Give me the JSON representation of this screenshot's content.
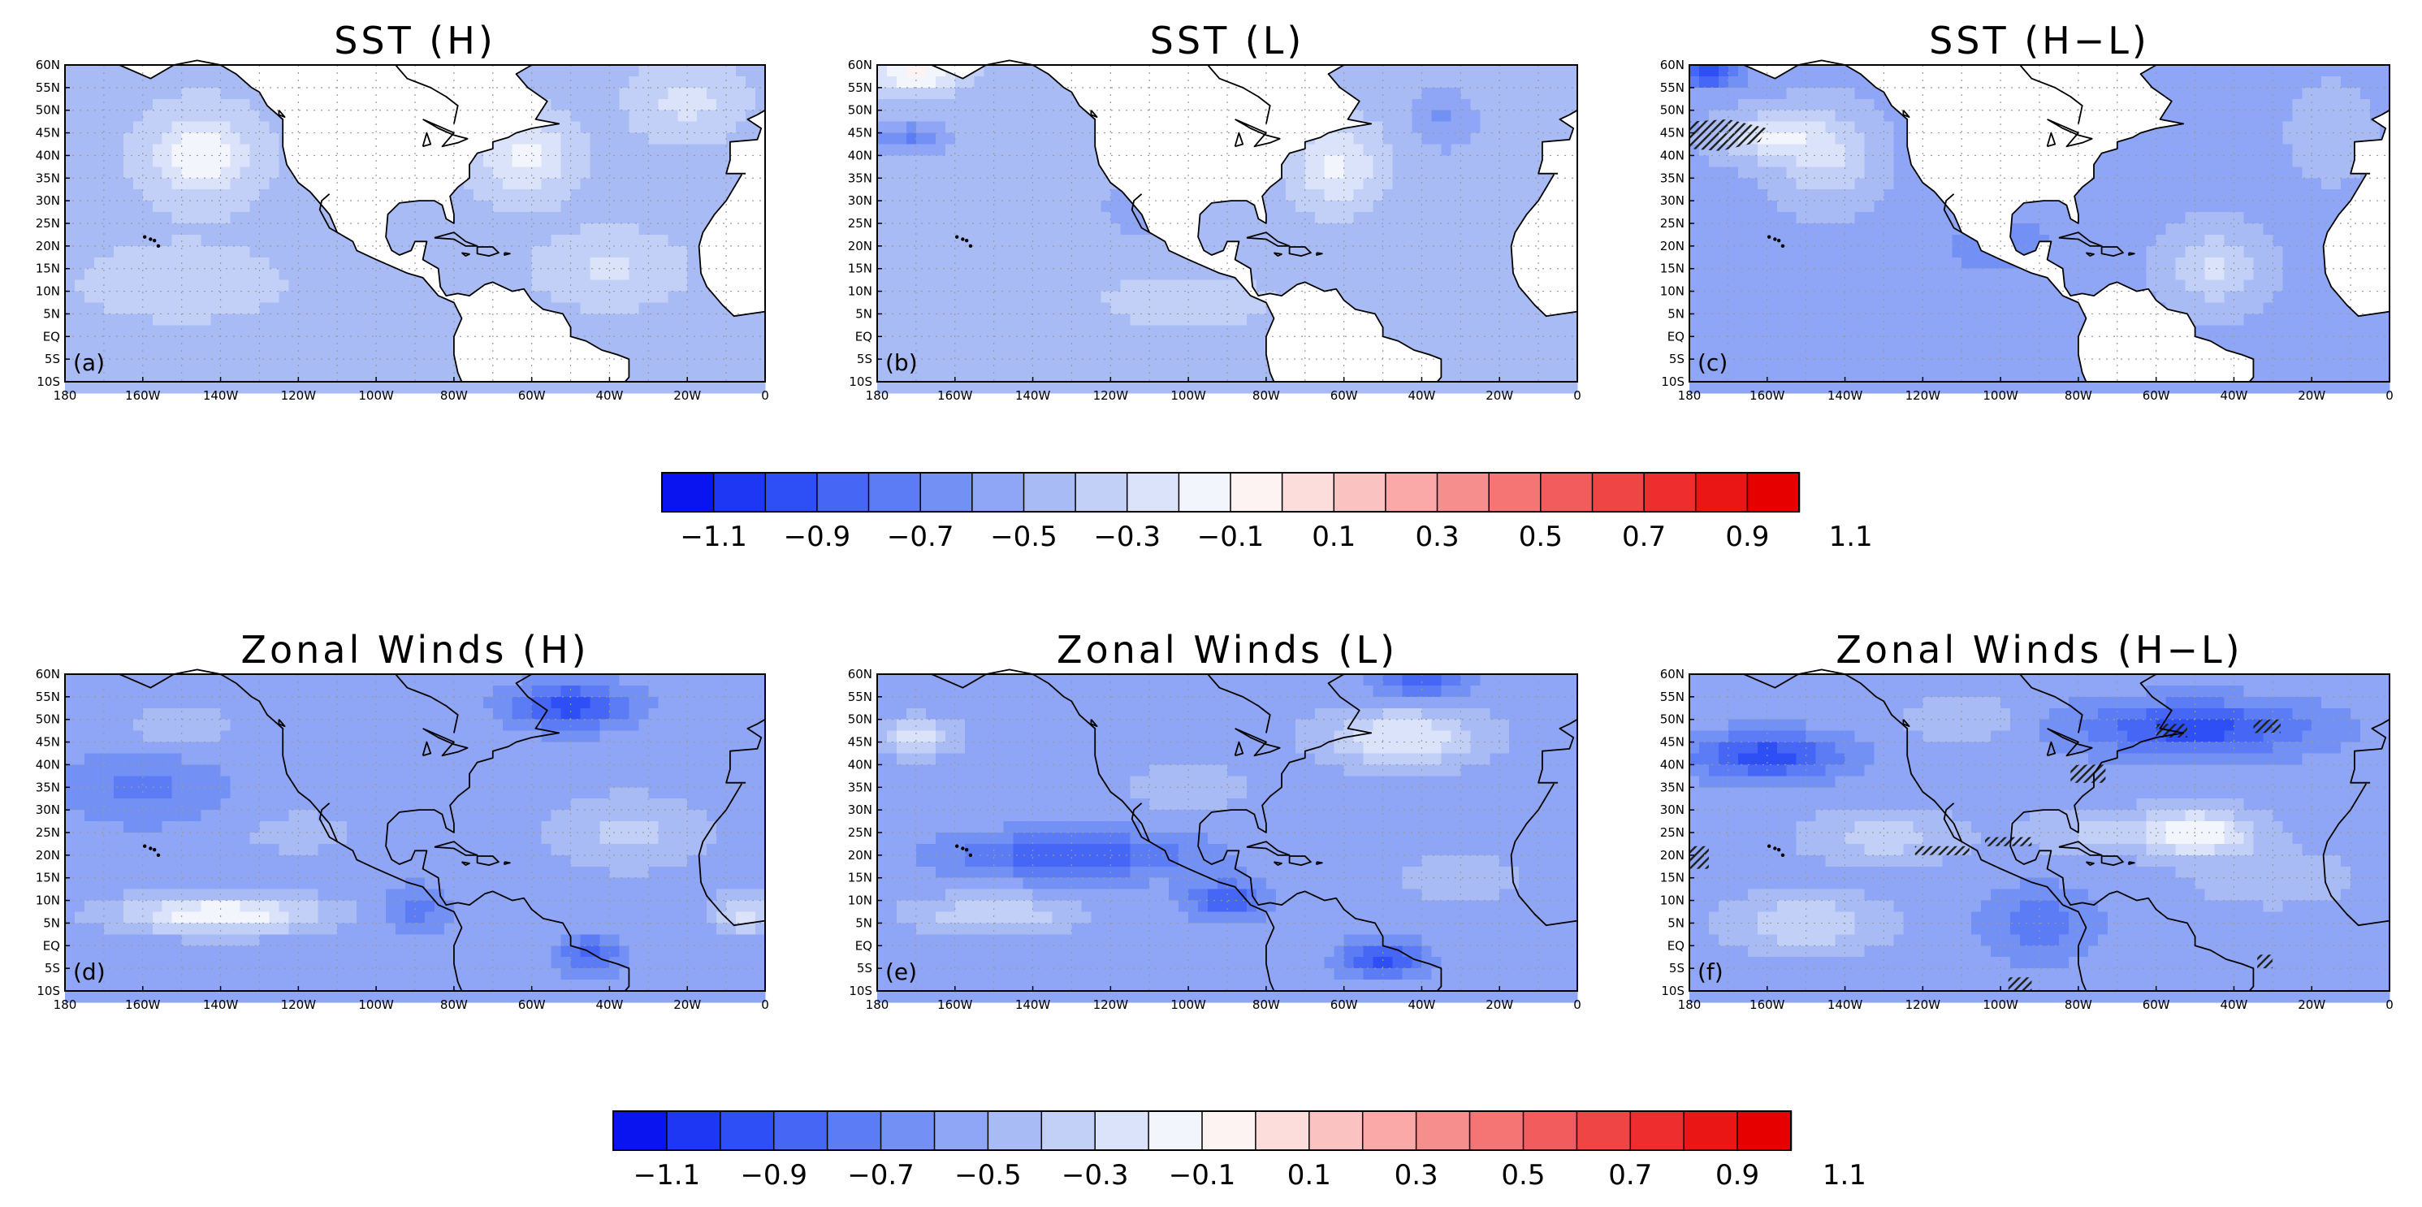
{
  "axes": {
    "lat_ticks": [
      "60N",
      "55N",
      "50N",
      "45N",
      "40N",
      "35N",
      "30N",
      "25N",
      "20N",
      "15N",
      "10N",
      "5N",
      "EQ",
      "5S",
      "10S"
    ],
    "lon_ticks": [
      "180",
      "160W",
      "140W",
      "120W",
      "100W",
      "80W",
      "60W",
      "40W",
      "20W",
      "0"
    ],
    "lat_range": [
      -10,
      60
    ],
    "lon_range": [
      -180,
      0
    ]
  },
  "colors": {
    "scale": [
      "#0a14f0",
      "#1e37f5",
      "#2e4ff5",
      "#4666f5",
      "#5c7cf5",
      "#7391f5",
      "#8ea6f5",
      "#a8bbf5",
      "#c2cff7",
      "#dbe3fa",
      "#f3f5fc",
      "#fdf3f3",
      "#fddcdc",
      "#fbc2c2",
      "#faa8a8",
      "#f78e8e",
      "#f57575",
      "#f35c5c",
      "#f04545",
      "#ee2e2e",
      "#ea1515",
      "#e60000"
    ],
    "coast": "#000000"
  },
  "colorbars": [
    {
      "labels": [
        "−1.1",
        "−0.9",
        "−0.7",
        "−0.5",
        "−0.3",
        "−0.1",
        "0.1",
        "0.3",
        "0.5",
        "0.7",
        "0.9",
        "1.1"
      ]
    },
    {
      "labels": [
        "−1.1",
        "−0.9",
        "−0.7",
        "−0.5",
        "−0.3",
        "−0.1",
        "0.1",
        "0.3",
        "0.5",
        "0.7",
        "0.9",
        "1.1"
      ]
    }
  ],
  "chart_data": [
    {
      "type": "heatmap",
      "title": "SST (H)",
      "panel_label": "(a)",
      "base": 0.22,
      "features": [
        [
          -145,
          40,
          0.6,
          14,
          10
        ],
        [
          -62,
          40,
          0.55,
          12,
          9
        ],
        [
          -40,
          15,
          0.3,
          18,
          8
        ],
        [
          -150,
          12,
          0.25,
          25,
          8
        ],
        [
          -20,
          52,
          0.35,
          14,
          8
        ]
      ]
    },
    {
      "type": "heatmap",
      "title": "SST (L)",
      "panel_label": "(b)",
      "base": 0.18,
      "features": [
        [
          -170,
          58,
          0.8,
          12,
          4
        ],
        [
          -172,
          44,
          -0.5,
          9,
          3
        ],
        [
          -62,
          38,
          0.55,
          12,
          10
        ],
        [
          -35,
          48,
          -0.3,
          8,
          6
        ],
        [
          -110,
          28,
          -0.2,
          12,
          6
        ],
        [
          -100,
          8,
          0.2,
          30,
          8
        ]
      ]
    },
    {
      "type": "heatmap",
      "title": "SST (H−L)",
      "panel_label": "(c)",
      "base": 0.05,
      "features": [
        [
          -175,
          58,
          -0.9,
          8,
          3
        ],
        [
          -160,
          44,
          0.6,
          12,
          5
        ],
        [
          -145,
          40,
          0.5,
          12,
          10
        ],
        [
          -45,
          15,
          0.5,
          12,
          8
        ],
        [
          -100,
          20,
          -0.3,
          15,
          7
        ],
        [
          -15,
          45,
          0.2,
          10,
          10
        ]
      ]
    },
    {
      "type": "heatmap",
      "title": "Zonal Winds (H)",
      "panel_label": "(d)",
      "base": 0.0,
      "features": [
        [
          -140,
          7,
          0.9,
          25,
          4
        ],
        [
          -50,
          53,
          -0.8,
          15,
          5
        ],
        [
          -5,
          7,
          0.6,
          8,
          4
        ],
        [
          -45,
          -2,
          -0.6,
          8,
          4
        ],
        [
          -90,
          8,
          -0.4,
          8,
          5
        ],
        [
          -160,
          35,
          -0.35,
          20,
          8
        ],
        [
          -35,
          25,
          0.35,
          20,
          8
        ],
        [
          -120,
          25,
          0.2,
          15,
          5
        ],
        [
          -150,
          48,
          0.3,
          12,
          5
        ]
      ]
    },
    {
      "type": "heatmap",
      "title": "Zonal Winds (L)",
      "panel_label": "(e)",
      "base": 0.0,
      "features": [
        [
          -170,
          46,
          0.6,
          10,
          4
        ],
        [
          -45,
          46,
          0.7,
          20,
          6
        ],
        [
          -130,
          20,
          -0.7,
          30,
          5
        ],
        [
          -90,
          10,
          -0.7,
          10,
          4
        ],
        [
          -150,
          7,
          0.5,
          20,
          4
        ],
        [
          -50,
          -3,
          -0.8,
          10,
          4
        ],
        [
          -40,
          58,
          -0.6,
          12,
          3
        ],
        [
          -100,
          35,
          0.3,
          15,
          5
        ],
        [
          -30,
          15,
          0.3,
          15,
          5
        ]
      ]
    },
    {
      "type": "heatmap",
      "title": "Zonal Winds (H−L)",
      "panel_label": "(f)",
      "base": 0.0,
      "features": [
        [
          -160,
          42,
          -0.8,
          20,
          5
        ],
        [
          -50,
          48,
          -0.8,
          30,
          6
        ],
        [
          -50,
          25,
          0.9,
          15,
          5
        ],
        [
          -130,
          24,
          0.4,
          20,
          6
        ],
        [
          -80,
          25,
          0.3,
          15,
          5
        ],
        [
          -150,
          5,
          0.5,
          20,
          6
        ],
        [
          -90,
          5,
          -0.4,
          15,
          8
        ],
        [
          -30,
          15,
          0.3,
          20,
          6
        ],
        [
          -110,
          50,
          0.3,
          15,
          5
        ]
      ]
    }
  ]
}
